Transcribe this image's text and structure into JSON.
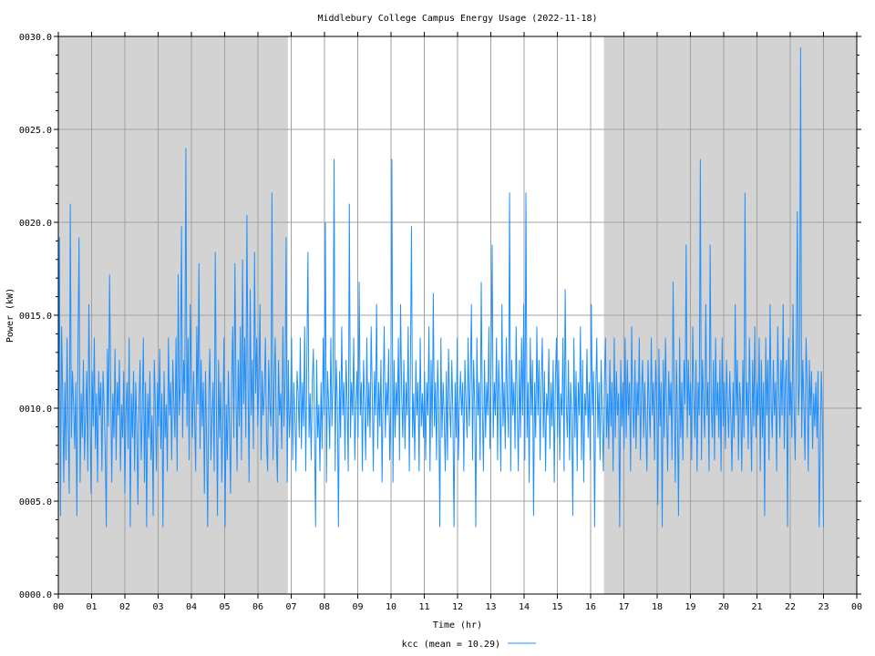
{
  "chart_data": {
    "type": "line",
    "title": "Middlebury College Campus Energy Usage (2022-11-18)",
    "xlabel": "Time (hr)",
    "ylabel": "Power (kW)",
    "xlim": [
      0,
      24
    ],
    "ylim": [
      0,
      30
    ],
    "x_ticks": [
      0,
      1,
      2,
      3,
      4,
      5,
      6,
      7,
      8,
      9,
      10,
      11,
      12,
      13,
      14,
      15,
      16,
      17,
      18,
      19,
      20,
      21,
      22,
      23,
      24
    ],
    "x_tick_labels": [
      "00",
      "01",
      "02",
      "03",
      "04",
      "05",
      "06",
      "07",
      "08",
      "09",
      "10",
      "11",
      "12",
      "13",
      "14",
      "15",
      "16",
      "17",
      "18",
      "19",
      "20",
      "21",
      "22",
      "23",
      "00"
    ],
    "y_ticks": [
      0,
      5,
      10,
      15,
      20,
      25,
      30
    ],
    "y_tick_labels": [
      "0000.0",
      "0005.0",
      "0010.0",
      "0015.0",
      "0020.0",
      "0025.0",
      "0030.0"
    ],
    "grid": true,
    "shaded_regions_hr": [
      [
        0,
        6.9
      ],
      [
        16.4,
        24
      ]
    ],
    "shade_color": "#d3d3d3",
    "legend": "bottom-center",
    "series": [
      {
        "name": "kcc (mean = 10.29)",
        "color": "#1e90ff",
        "x_start_hr": 0,
        "x_end_hr": 23,
        "values": [
          7.2,
          19.2,
          4.2,
          14.4,
          10.8,
          6.0,
          11.4,
          7.2,
          13.8,
          9.0,
          5.4,
          21.0,
          8.4,
          12.0,
          10.2,
          7.8,
          11.4,
          4.2,
          13.2,
          19.2,
          6.0,
          10.8,
          8.4,
          12.6,
          7.2,
          9.6,
          12.0,
          6.6,
          15.6,
          10.2,
          5.4,
          12.0,
          9.0,
          13.8,
          7.8,
          10.8,
          6.0,
          12.0,
          9.6,
          11.4,
          6.6,
          12.0,
          10.2,
          7.8,
          3.6,
          13.2,
          9.0,
          17.2,
          11.4,
          6.0,
          10.8,
          8.4,
          13.2,
          7.2,
          11.4,
          9.6,
          12.6,
          6.6,
          10.2,
          8.4,
          12.0,
          5.4,
          9.6,
          11.4,
          7.8,
          13.8,
          3.6,
          10.8,
          8.4,
          12.0,
          6.6,
          11.4,
          9.0,
          4.8,
          10.2,
          12.6,
          7.2,
          9.6,
          13.8,
          6.0,
          11.4,
          3.6,
          10.8,
          8.4,
          12.0,
          7.2,
          9.6,
          4.2,
          12.6,
          10.2,
          6.6,
          11.4,
          9.0,
          13.2,
          7.8,
          10.8,
          3.6,
          12.0,
          8.4,
          10.2,
          6.6,
          13.8,
          9.6,
          11.4,
          7.2,
          12.6,
          10.2,
          8.4,
          13.8,
          6.6,
          17.2,
          9.6,
          11.4,
          19.8,
          8.4,
          12.6,
          10.8,
          24.0,
          9.0,
          13.8,
          7.2,
          15.6,
          11.4,
          8.4,
          12.0,
          9.6,
          6.6,
          14.4,
          10.2,
          17.8,
          7.8,
          12.6,
          9.0,
          11.4,
          5.4,
          12.0,
          8.4,
          3.6,
          10.8,
          13.2,
          7.2,
          9.6,
          11.4,
          6.6,
          18.4,
          10.2,
          4.2,
          12.6,
          8.4,
          11.4,
          6.0,
          9.6,
          13.8,
          3.6,
          10.2,
          7.2,
          12.0,
          9.0,
          5.4,
          11.4,
          14.4,
          8.4,
          17.8,
          10.8,
          6.6,
          12.6,
          9.0,
          14.4,
          7.2,
          18.0,
          10.2,
          13.8,
          8.4,
          20.4,
          11.4,
          6.0,
          16.4,
          9.6,
          12.6,
          7.8,
          18.4,
          10.8,
          13.8,
          9.0,
          11.4,
          15.6,
          7.2,
          12.0,
          9.6,
          10.8,
          13.8,
          8.4,
          6.6,
          12.6,
          10.2,
          9.0,
          21.6,
          7.2,
          11.4,
          13.8,
          8.4,
          6.0,
          12.6,
          9.6,
          10.8,
          7.8,
          14.4,
          9.0,
          11.4,
          19.2,
          6.0,
          12.6,
          8.4,
          10.2,
          13.8,
          7.2,
          11.4,
          9.6,
          6.6,
          12.0,
          10.8,
          8.4,
          13.8,
          7.8,
          11.4,
          9.0,
          14.4,
          6.6,
          12.6,
          18.4,
          8.4,
          10.8,
          7.2,
          11.4,
          13.2,
          9.0,
          3.6,
          12.6,
          8.4,
          10.2,
          6.6,
          11.4,
          7.8,
          13.8,
          9.6,
          20.0,
          6.0,
          12.0,
          10.2,
          7.8,
          13.8,
          9.0,
          11.4,
          23.4,
          6.6,
          12.6,
          10.2,
          3.6,
          12.0,
          8.4,
          14.4,
          9.6,
          11.4,
          7.2,
          12.6,
          10.2,
          6.6,
          21.0,
          8.4,
          11.4,
          9.6,
          13.8,
          7.2,
          10.2,
          12.0,
          8.4,
          16.8,
          9.6,
          11.4,
          6.6,
          12.6,
          10.2,
          7.2,
          13.8,
          9.0,
          11.4,
          8.4,
          14.4,
          10.8,
          6.6,
          12.0,
          9.6,
          15.6,
          7.8,
          11.4,
          9.0,
          12.6,
          6.0,
          10.8,
          14.4,
          8.4,
          11.4,
          9.6,
          13.2,
          7.2,
          10.2,
          23.4,
          6.0,
          12.6,
          8.4,
          11.4,
          9.6,
          13.8,
          7.2,
          15.6,
          10.8,
          8.4,
          12.6,
          7.8,
          11.4,
          9.6,
          14.4,
          6.6,
          12.0,
          19.8,
          8.4,
          10.8,
          7.2,
          12.6,
          9.6,
          11.4,
          6.6,
          13.8,
          9.0,
          10.8,
          8.4,
          12.0,
          7.2,
          11.4,
          9.6,
          14.4,
          6.6,
          12.6,
          8.4,
          16.2,
          9.0,
          11.4,
          7.2,
          12.6,
          10.2,
          3.6,
          13.8,
          8.4,
          11.4,
          9.6,
          6.6,
          12.0,
          7.2,
          13.2,
          10.2,
          8.4,
          12.6,
          9.6,
          3.6,
          11.4,
          8.4,
          13.8,
          7.2,
          10.2,
          12.0,
          9.6,
          11.4,
          6.6,
          12.6,
          10.2,
          8.4,
          13.8,
          9.0,
          11.4,
          15.6,
          7.2,
          12.6,
          10.2,
          3.6,
          13.8,
          9.6,
          11.4,
          7.2,
          16.8,
          10.2,
          6.6,
          12.6,
          8.4,
          11.4,
          9.6,
          14.4,
          7.8,
          12.0,
          18.8,
          8.4,
          11.4,
          9.6,
          13.8,
          7.2,
          12.6,
          10.2,
          6.6,
          15.6,
          9.0,
          11.4,
          7.8,
          13.8,
          10.2,
          8.4,
          21.6,
          6.6,
          12.6,
          9.6,
          11.4,
          7.8,
          14.4,
          10.2,
          6.6,
          12.6,
          8.4,
          13.8,
          9.6,
          15.6,
          7.2,
          21.6,
          8.4,
          11.4,
          6.0,
          13.8,
          9.6,
          12.6,
          4.2,
          11.4,
          8.4,
          14.4,
          9.6,
          12.6,
          7.2,
          11.4,
          13.8,
          8.4,
          12.0,
          6.6,
          10.8,
          9.6,
          13.2,
          7.8,
          11.4,
          9.0,
          12.6,
          6.0,
          11.4,
          13.8,
          8.4,
          12.6,
          7.2,
          10.8,
          9.6,
          13.8,
          6.6,
          16.4,
          10.2,
          8.4,
          12.6,
          7.2,
          11.4,
          9.6,
          4.2,
          13.8,
          8.4,
          12.0,
          6.6,
          11.4,
          9.6,
          14.4,
          7.2,
          12.6,
          6.0,
          10.8,
          9.6,
          13.2,
          8.4,
          11.4,
          7.2,
          15.6,
          9.6,
          12.0,
          3.6,
          10.8,
          13.8,
          8.4,
          11.4,
          7.2,
          12.6,
          9.6,
          6.6,
          11.4,
          13.8,
          8.4,
          10.8,
          7.8,
          12.6,
          9.0,
          11.4,
          6.6,
          13.8,
          8.4,
          12.0,
          9.6,
          10.8,
          3.6,
          12.6,
          9.0,
          11.4,
          7.8,
          13.8,
          8.4,
          12.6,
          9.6,
          11.4,
          6.6,
          14.4,
          10.2,
          8.4,
          12.6,
          7.8,
          11.4,
          9.6,
          13.8,
          7.2,
          10.8,
          12.6,
          8.4,
          11.4,
          9.0,
          6.6,
          12.6,
          10.2,
          8.4,
          13.8,
          9.6,
          11.4,
          7.2,
          12.6,
          10.2,
          4.8,
          13.2,
          9.0,
          11.4,
          3.6,
          12.6,
          8.4,
          13.8,
          10.2,
          6.6,
          12.0,
          9.6,
          11.4,
          7.2,
          16.8,
          10.8,
          6.0,
          12.6,
          9.6,
          4.2,
          13.8,
          8.4,
          11.4,
          7.2,
          12.6,
          10.2,
          18.8,
          8.4,
          12.6,
          9.6,
          11.4,
          7.2,
          14.4,
          10.8,
          8.4,
          12.6,
          6.6,
          11.4,
          9.6,
          23.4,
          7.2,
          12.6,
          10.2,
          8.4,
          15.6,
          9.6,
          11.4,
          6.6,
          18.8,
          10.2,
          8.4,
          12.6,
          7.2,
          13.8,
          9.6,
          11.4,
          8.4,
          12.6,
          6.6,
          13.8,
          9.0,
          11.4,
          7.8,
          12.6,
          10.2,
          8.4,
          12.0,
          9.6,
          6.6,
          11.4,
          8.4,
          15.6,
          9.6,
          12.6,
          7.2,
          11.4,
          10.2,
          6.6,
          12.6,
          8.4,
          21.6,
          9.6,
          11.4,
          7.8,
          13.8,
          10.2,
          6.6,
          12.6,
          9.0,
          14.4,
          8.4,
          11.4,
          9.6,
          13.8,
          6.6,
          12.6,
          8.4,
          11.4,
          4.2,
          13.8,
          9.6,
          12.6,
          7.2,
          15.6,
          10.2,
          8.4,
          12.6,
          9.6,
          11.4,
          6.6,
          14.4,
          10.8,
          8.4,
          12.6,
          9.6,
          15.6,
          7.8,
          11.4,
          12.6,
          3.6,
          13.8,
          9.6,
          11.4,
          8.4,
          15.6,
          10.2,
          7.2,
          12.6,
          20.6,
          9.6,
          11.4,
          29.4,
          8.4,
          12.6,
          10.2,
          7.2,
          13.8,
          11.4,
          6.6,
          12.6,
          9.6,
          12.0,
          7.8,
          10.8,
          9.0,
          11.4,
          8.4,
          12.0,
          3.6,
          7.8,
          12.0,
          9.6,
          3.6
        ]
      }
    ]
  }
}
